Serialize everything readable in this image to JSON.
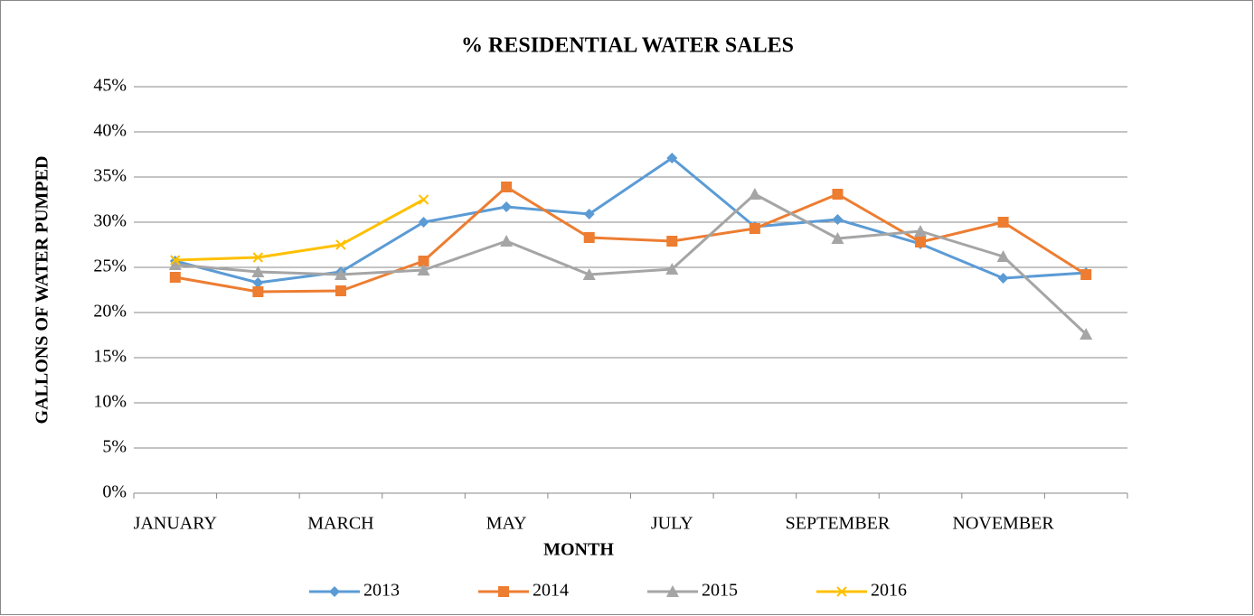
{
  "chart_data": {
    "type": "line",
    "title": "% RESIDENTIAL WATER SALES",
    "x_label": "MONTH",
    "y_label": "GALLONS OF WATER PUMPED",
    "categories": [
      "JANUARY",
      null,
      "MARCH",
      null,
      "MAY",
      null,
      "JULY",
      null,
      "SEPTEMBER",
      null,
      "NOVEMBER",
      null
    ],
    "series": [
      {
        "name": "2013",
        "color": "#5b9bd5",
        "marker": "diamond",
        "values": [
          25.7,
          23.3,
          24.5,
          30.0,
          31.7,
          30.9,
          37.1,
          29.5,
          30.3,
          27.6,
          23.8,
          24.4
        ]
      },
      {
        "name": "2014",
        "color": "#ed7d31",
        "marker": "square",
        "values": [
          23.9,
          22.3,
          22.4,
          25.7,
          33.9,
          28.3,
          27.9,
          29.3,
          33.1,
          27.8,
          30.0,
          24.2
        ]
      },
      {
        "name": "2015",
        "color": "#a5a5a5",
        "marker": "triangle",
        "values": [
          25.3,
          24.5,
          24.2,
          24.7,
          27.9,
          24.2,
          24.8,
          33.1,
          28.2,
          29.0,
          26.2,
          17.6
        ]
      },
      {
        "name": "2016",
        "color": "#ffc000",
        "marker": "x",
        "values": [
          25.8,
          26.1,
          27.5,
          32.5,
          null,
          null,
          null,
          null,
          null,
          null,
          null,
          null
        ]
      }
    ],
    "ylim": [
      0,
      45
    ],
    "yticks": [
      {
        "value": 0,
        "label": "0%"
      },
      {
        "value": 5,
        "label": "5%"
      },
      {
        "value": 10,
        "label": "10%"
      },
      {
        "value": 15,
        "label": "15%"
      },
      {
        "value": 20,
        "label": "20%"
      },
      {
        "value": 25,
        "label": "25%"
      },
      {
        "value": 30,
        "label": "30%"
      },
      {
        "value": 35,
        "label": "35%"
      },
      {
        "value": 40,
        "label": "40%"
      },
      {
        "value": 45,
        "label": "45%"
      }
    ],
    "grid": true,
    "legend": "bottom"
  }
}
